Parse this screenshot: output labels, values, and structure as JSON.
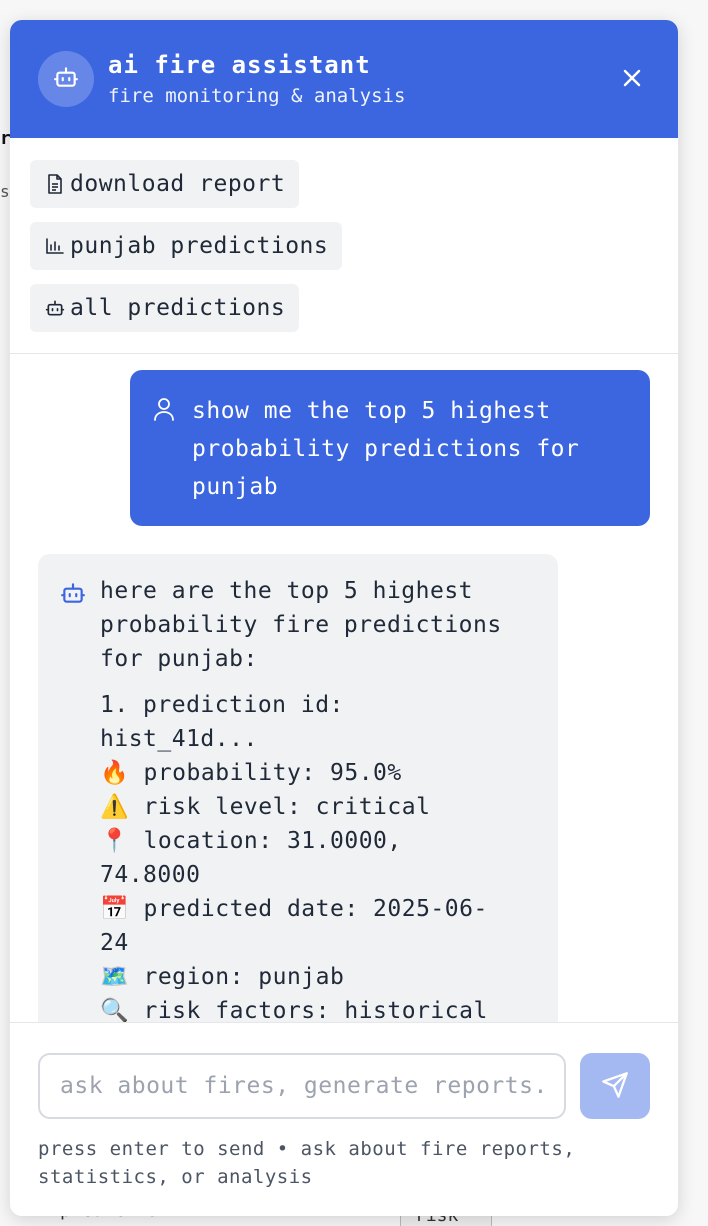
{
  "background": {
    "fragment_top": "r",
    "fragment_mid": "s",
    "fragment_bottom": "prediction",
    "fragment_button": "risk"
  },
  "header": {
    "title": "ai fire assistant",
    "subtitle": "fire monitoring & analysis",
    "avatar_icon": "robot-icon",
    "close_icon": "close-icon",
    "color": "#3b66e0"
  },
  "quick_actions": [
    {
      "label": "download report",
      "icon": "document-icon"
    },
    {
      "label": "punjab predictions",
      "icon": "bar-chart-icon"
    },
    {
      "label": "all predictions",
      "icon": "robot-icon"
    }
  ],
  "messages": {
    "user": {
      "text": "show me the top 5 highest probability predictions for punjab",
      "icon": "user-icon"
    },
    "bot": {
      "icon": "robot-icon",
      "intro": "here are the top 5 highest probability fire predictions for punjab:",
      "lines": [
        "1. prediction id:",
        "hist_41d...",
        "🔥 probability: 95.0%",
        "⚠️ risk level: critical",
        "📍 location: 31.0000,",
        "74.8000",
        "📅 predicted date: 2025-06-",
        "24",
        "🗺️ region: punjab",
        "🔍 risk factors: historical"
      ]
    }
  },
  "composer": {
    "placeholder": "ask about fires, generate reports...",
    "value": "",
    "send_icon": "send-icon",
    "hint": "press enter to send • ask about fire reports, statistics, or analysis",
    "send_color": "#a4b8f2"
  }
}
